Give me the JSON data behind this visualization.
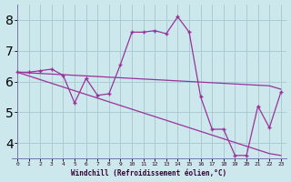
{
  "xlabel": "Windchill (Refroidissement éolien,°C)",
  "background_color": "#cce8ec",
  "grid_color": "#aaccd4",
  "line_color": "#993399",
  "spine_color": "#7777aa",
  "x_values": [
    0,
    1,
    2,
    3,
    4,
    5,
    6,
    7,
    8,
    9,
    10,
    11,
    12,
    13,
    14,
    15,
    16,
    17,
    18,
    19,
    20,
    21,
    22,
    23
  ],
  "y_main": [
    6.3,
    6.3,
    6.35,
    6.4,
    6.2,
    5.3,
    6.1,
    5.55,
    5.6,
    6.55,
    7.6,
    7.6,
    7.65,
    7.55,
    8.1,
    7.6,
    5.5,
    4.45,
    4.45,
    3.6,
    3.6,
    5.2,
    4.5,
    5.65
  ],
  "y_trend1": [
    6.3,
    6.28,
    6.26,
    6.24,
    6.22,
    6.2,
    6.18,
    6.16,
    6.14,
    6.12,
    6.1,
    6.08,
    6.06,
    6.04,
    6.02,
    6.0,
    5.98,
    5.96,
    5.94,
    5.92,
    5.9,
    5.88,
    5.86,
    5.75
  ],
  "y_trend2": [
    6.3,
    6.18,
    6.06,
    5.94,
    5.82,
    5.7,
    5.58,
    5.46,
    5.34,
    5.22,
    5.1,
    4.98,
    4.86,
    4.74,
    4.62,
    4.5,
    4.38,
    4.26,
    4.14,
    4.02,
    3.9,
    3.78,
    3.66,
    3.6
  ],
  "ylim": [
    3.5,
    8.5
  ],
  "xlim": [
    -0.5,
    23.5
  ],
  "yticks": [
    4,
    5,
    6,
    7,
    8
  ],
  "xticks": [
    0,
    1,
    2,
    3,
    4,
    5,
    6,
    7,
    8,
    9,
    10,
    11,
    12,
    13,
    14,
    15,
    16,
    17,
    18,
    19,
    20,
    21,
    22,
    23
  ]
}
